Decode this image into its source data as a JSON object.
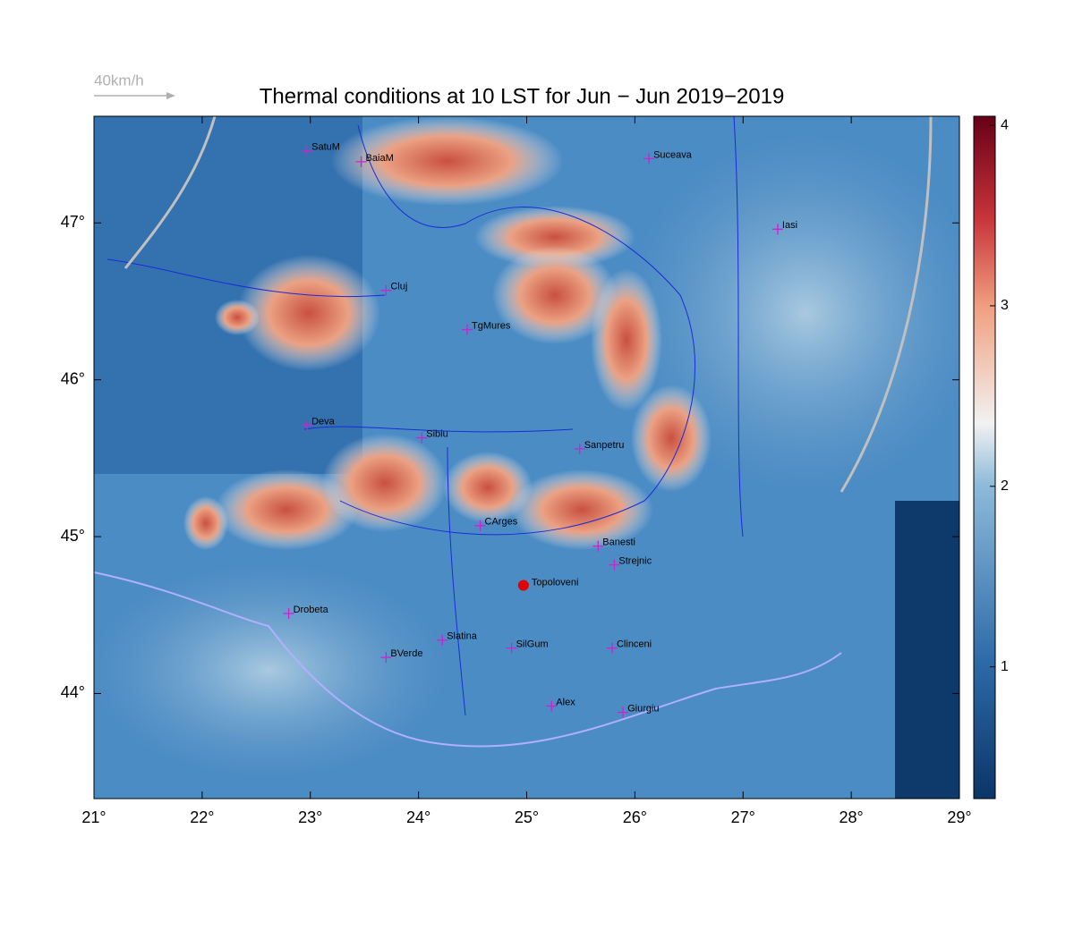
{
  "map": {
    "title": "Thermal conditions at 10 LST for Jun − Jun  2019−2019",
    "scale_label": "40km/h",
    "lonlim": [
      21,
      29
    ],
    "latlim": [
      43.33,
      47.68
    ],
    "lonticks": [
      {
        "value": 21,
        "label": "21°"
      },
      {
        "value": 22,
        "label": "22°"
      },
      {
        "value": 23,
        "label": "23°"
      },
      {
        "value": 24,
        "label": "24°"
      },
      {
        "value": 25,
        "label": "25°"
      },
      {
        "value": 26,
        "label": "26°"
      },
      {
        "value": 27,
        "label": "27°"
      },
      {
        "value": 28,
        "label": "28°"
      },
      {
        "value": 29,
        "label": "29°"
      }
    ],
    "latticks": [
      {
        "value": 44,
        "label": "44°"
      },
      {
        "value": 45,
        "label": "45°"
      },
      {
        "value": 46,
        "label": "46°"
      },
      {
        "value": 47,
        "label": "47°"
      }
    ],
    "colorbar": {
      "lim": [
        0.27,
        4.05
      ],
      "ticks": [
        1,
        2,
        3,
        4
      ]
    },
    "city_color": "#d020d0",
    "cities": [
      {
        "label": "SatuM",
        "lon": 22.97,
        "lat": 47.46
      },
      {
        "label": "BaiaM",
        "lon": 23.47,
        "lat": 47.39
      },
      {
        "label": "Suceava",
        "lon": 26.13,
        "lat": 47.41
      },
      {
        "label": "Iasi",
        "lon": 27.32,
        "lat": 46.96
      },
      {
        "label": "Cluj",
        "lon": 23.7,
        "lat": 46.57
      },
      {
        "label": "TgMures",
        "lon": 24.45,
        "lat": 46.32
      },
      {
        "label": "Deva",
        "lon": 22.97,
        "lat": 45.71
      },
      {
        "label": "Sibiu",
        "lon": 24.03,
        "lat": 45.63
      },
      {
        "label": "Sanpetru",
        "lon": 25.49,
        "lat": 45.56
      },
      {
        "label": "CArges",
        "lon": 24.57,
        "lat": 45.07
      },
      {
        "label": "Banesti",
        "lon": 25.66,
        "lat": 44.94
      },
      {
        "label": "Strejnic",
        "lon": 25.81,
        "lat": 44.82
      },
      {
        "label": "Drobeta",
        "lon": 22.8,
        "lat": 44.51
      },
      {
        "label": "Slatina",
        "lon": 24.22,
        "lat": 44.34
      },
      {
        "label": "SilGum",
        "lon": 24.86,
        "lat": 44.29
      },
      {
        "label": "Clinceni",
        "lon": 25.79,
        "lat": 44.29
      },
      {
        "label": "BVerde",
        "lon": 23.7,
        "lat": 44.23
      },
      {
        "label": "Alex",
        "lon": 25.23,
        "lat": 43.92
      },
      {
        "label": "Giurgiu",
        "lon": 25.89,
        "lat": 43.88
      }
    ],
    "site": {
      "label": "Topoloveni",
      "lon": 24.97,
      "lat": 44.69,
      "color": "#e00000"
    }
  }
}
